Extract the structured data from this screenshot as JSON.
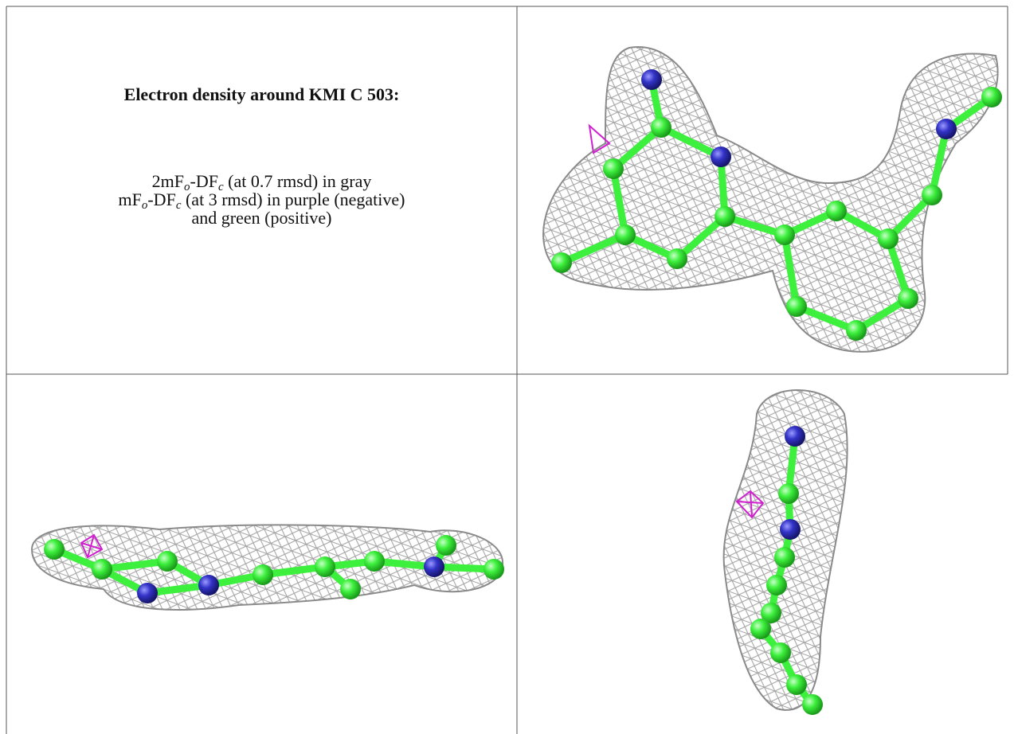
{
  "header": {
    "title": "Electron density around KMI C 503:"
  },
  "legend": {
    "lines": [
      [
        "2mF",
        "o",
        "-DF",
        "c",
        " (at 0.7 rmsd) in gray"
      ],
      [
        "mF",
        "o",
        "-DF",
        "c",
        " (at 3 rmsd) in purple (negative)"
      ],
      [
        "and green (positive)"
      ]
    ]
  }
}
